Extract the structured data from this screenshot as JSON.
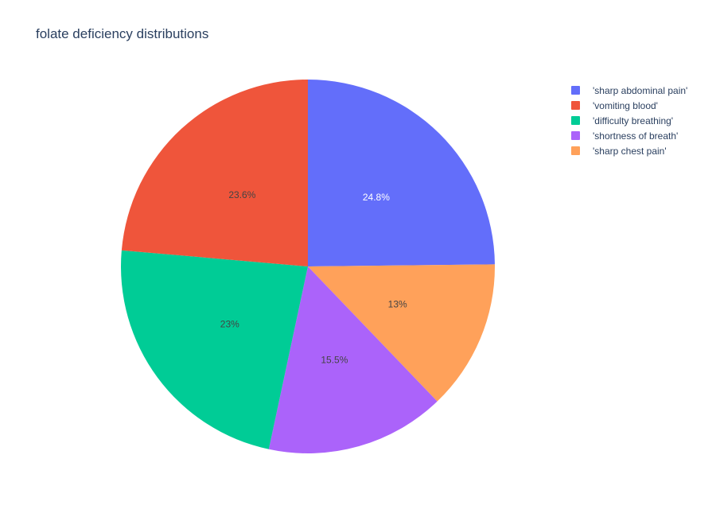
{
  "chart_data": {
    "type": "pie",
    "title": "folate deficiency distributions",
    "slices": [
      {
        "label": "'sharp abdominal pain'",
        "value": 24.8,
        "text": "24.8%",
        "color": "#636efa",
        "text_color": "#ffffff"
      },
      {
        "label": "'sharp chest pain'",
        "value": 13.0,
        "text": "13%",
        "color": "#ffa15a",
        "text_color": "#444444"
      },
      {
        "label": "'shortness of breath'",
        "value": 15.5,
        "text": "15.5%",
        "color": "#ab63fa",
        "text_color": "#444444"
      },
      {
        "label": "'difficulty breathing'",
        "value": 23.0,
        "text": "23%",
        "color": "#00cc96",
        "text_color": "#444444"
      },
      {
        "label": "'vomiting blood'",
        "value": 23.6,
        "text": "23.6%",
        "color": "#ef553b",
        "text_color": "#444444"
      }
    ],
    "legend": {
      "placement": "top-right",
      "entries": [
        {
          "label": "'sharp abdominal pain'",
          "color": "#636efa"
        },
        {
          "label": "'vomiting blood'",
          "color": "#ef553b"
        },
        {
          "label": "'difficulty breathing'",
          "color": "#00cc96"
        },
        {
          "label": "'shortness of breath'",
          "color": "#ab63fa"
        },
        {
          "label": "'sharp chest pain'",
          "color": "#ffa15a"
        }
      ]
    },
    "direction": "clockwise",
    "start": "top"
  }
}
